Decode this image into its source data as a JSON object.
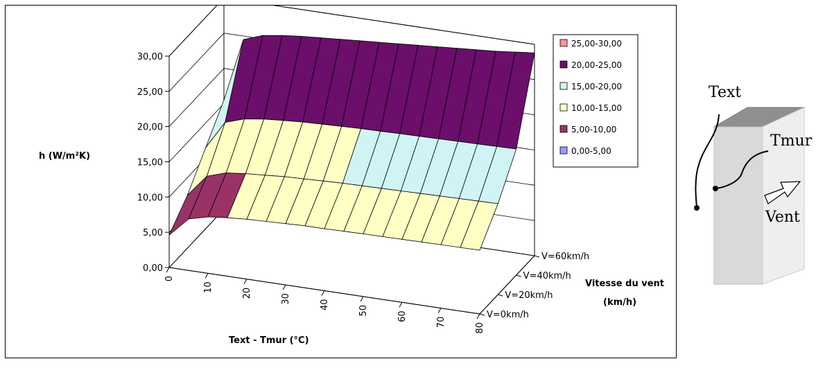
{
  "chart_data": {
    "type": "surface",
    "ylabel": "h (W/m²K)",
    "xlabel": "Text - Tmur (°C)",
    "zlabel_line1": "Vitesse du vent",
    "zlabel_line2": "(km/h)",
    "ylim": [
      0,
      30
    ],
    "y_ticks": [
      "0,00",
      "5,00",
      "10,00",
      "15,00",
      "20,00",
      "25,00",
      "30,00"
    ],
    "x_ticks": [
      "0",
      "10",
      "20",
      "30",
      "40",
      "50",
      "60",
      "70",
      "80"
    ],
    "z_ticks": [
      "V=0km/h",
      "V=20km/h",
      "V=40km/h",
      "V=60km/h"
    ],
    "x": [
      0,
      5,
      10,
      15,
      20,
      25,
      30,
      35,
      40,
      45,
      50,
      55,
      60,
      65,
      70,
      75,
      80
    ],
    "series": [
      {
        "name": "V=0km/h",
        "values": [
          4.6,
          7.3,
          8.0,
          8.3,
          8.5,
          8.6,
          8.7,
          8.8,
          8.8,
          8.85,
          8.9,
          8.92,
          8.95,
          8.97,
          9.0,
          9.02,
          9.05
        ]
      },
      {
        "name": "V=20km/h",
        "values": [
          7.5,
          10.6,
          11.5,
          11.8,
          12.0,
          12.2,
          12.3,
          12.4,
          12.5,
          12.55,
          12.6,
          12.65,
          12.7,
          12.75,
          12.8,
          12.85,
          12.9
        ]
      },
      {
        "name": "V=40km/h",
        "values": [
          11.5,
          15.5,
          16.4,
          16.8,
          17.0,
          17.2,
          17.3,
          17.4,
          17.5,
          17.55,
          17.6,
          17.65,
          17.7,
          17.75,
          17.8,
          17.85,
          17.9
        ]
      },
      {
        "name": "V=60km/h",
        "values": [
          15.5,
          24.5,
          25.5,
          25.9,
          26.2,
          26.4,
          26.6,
          26.8,
          27.0,
          27.2,
          27.4,
          27.6,
          27.8,
          28.0,
          28.2,
          28.5,
          28.8
        ]
      }
    ],
    "legend": [
      {
        "label": "25,00-30,00",
        "color": "#f49a93"
      },
      {
        "label": "20,00-25,00",
        "color": "#6b0f6b"
      },
      {
        "label": "15,00-20,00",
        "color": "#d0f4f4"
      },
      {
        "label": "10,00-15,00",
        "color": "#ffffc4"
      },
      {
        "label": "5,00-10,00",
        "color": "#993366"
      },
      {
        "label": "0,00-5,00",
        "color": "#9999ff"
      }
    ],
    "legend_position": "top-right",
    "grid": true
  },
  "diagram": {
    "label_text": "Text",
    "label_tmur": "Tmur",
    "label_vent": "Vent"
  }
}
